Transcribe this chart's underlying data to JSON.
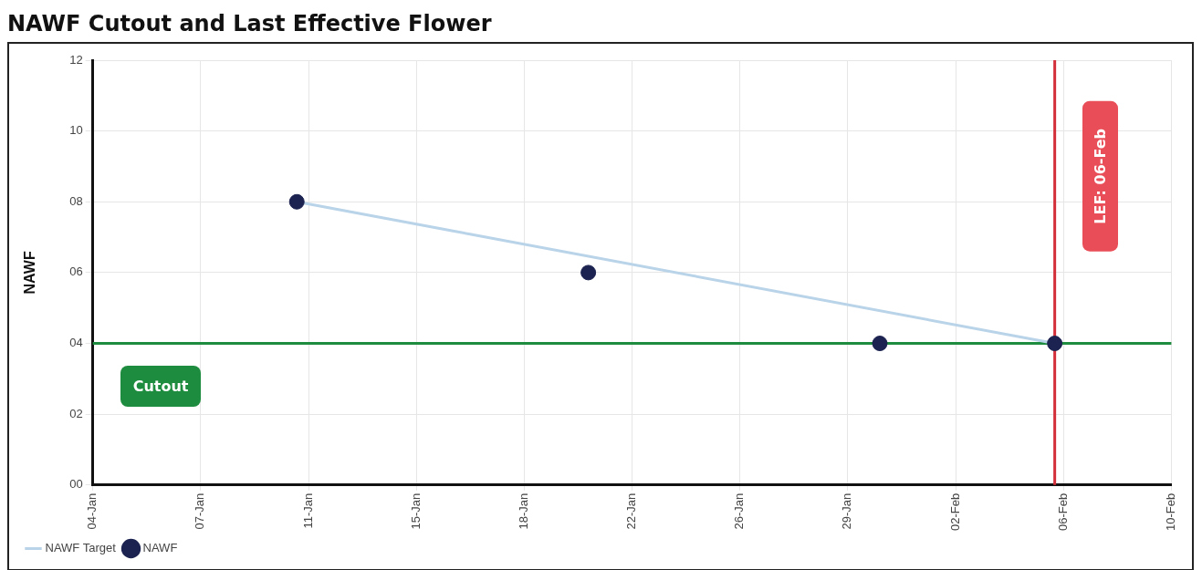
{
  "chart_data": {
    "type": "scatter",
    "title": "NAWF Cutout and Last Effective Flower",
    "ylabel": "NAWF",
    "xlim": [
      "--01-04",
      "--02-10"
    ],
    "xticks": [
      {
        "value": "--01-04",
        "label": "04-Jan"
      },
      {
        "value": "--01-07T16:48",
        "label": "07-Jan"
      },
      {
        "value": "--01-11T09:36",
        "label": "11-Jan"
      },
      {
        "value": "--01-15T02:24",
        "label": "15-Jan"
      },
      {
        "value": "--01-18T19:12",
        "label": "18-Jan"
      },
      {
        "value": "--01-22T12:00",
        "label": "22-Jan"
      },
      {
        "value": "--01-26T04:48",
        "label": "26-Jan"
      },
      {
        "value": "--01-29T21:36",
        "label": "29-Jan"
      },
      {
        "value": "--02-02T14:24",
        "label": "02-Feb"
      },
      {
        "value": "--02-06T07:12",
        "label": "06-Feb"
      },
      {
        "value": "--02-10",
        "label": "10-Feb"
      }
    ],
    "ylim": [
      0,
      12
    ],
    "yticks": [
      {
        "value": 0,
        "label": "00"
      },
      {
        "value": 2,
        "label": "02"
      },
      {
        "value": 4,
        "label": "04"
      },
      {
        "value": 6,
        "label": "06"
      },
      {
        "value": 8,
        "label": "08"
      },
      {
        "value": 10,
        "label": "10"
      },
      {
        "value": 12,
        "label": "12"
      }
    ],
    "series": [
      {
        "name": "NAWF Target",
        "type": "line",
        "marker": "none",
        "color": "#b9d3e8",
        "x": [
          "--01-11",
          "--02-06"
        ],
        "values": [
          8,
          4
        ]
      },
      {
        "name": "NAWF",
        "marker": "circle",
        "color": "#1c2350",
        "x": [
          "--01-11",
          "--01-21",
          "--01-31",
          "--02-06"
        ],
        "values": [
          8,
          6,
          4,
          4
        ]
      }
    ],
    "ref_lines": [
      {
        "axis": "y",
        "value": 4,
        "label": "Cutout",
        "color": "#1e8c3e"
      },
      {
        "axis": "x",
        "value": "--02-06",
        "label": "LEF: 06-Feb",
        "color": "#d32f3a"
      }
    ],
    "grid": true,
    "legend": "bottom left"
  }
}
